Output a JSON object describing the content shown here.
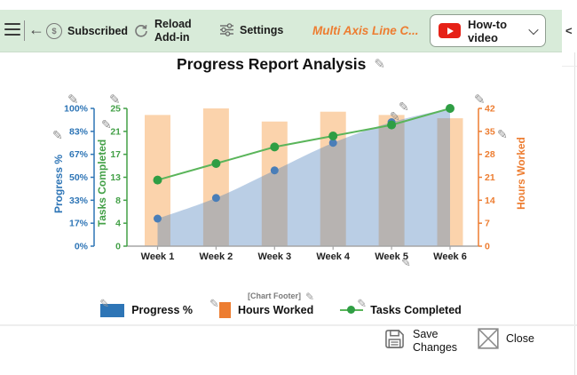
{
  "icons": {
    "pencil": "✎",
    "back_arrow": "←",
    "dollar": "$"
  },
  "toolbar": {
    "subscribed_label": "Subscribed",
    "reload_line1": "Reload",
    "reload_line2": "Add-in",
    "settings_label": "Settings",
    "app_title": "Multi Axis Line C...",
    "howto_label": "How-to video",
    "collapse_chevron": "<",
    "toolbar_bg": "#d8ebd9",
    "app_title_color": "#ed7d31",
    "youtube_red": "#e62117"
  },
  "chart": {
    "title": "Progress Report Analysis",
    "footer_label": "[Chart Footer]"
  },
  "chart_data": {
    "type": "combo (bar + area + line, multi-axis)",
    "title": "Progress Report Analysis",
    "categories": [
      "Week 1",
      "Week 2",
      "Week 3",
      "Week 4",
      "Week 5",
      "Week 6"
    ],
    "series": [
      {
        "name": "Progress %",
        "chart_type": "area",
        "axis": "progress",
        "values": [
          20,
          35,
          55,
          75,
          90,
          100
        ],
        "color": "#2e75b6",
        "fill": "rgba(74,126,187,0.38)",
        "dot_color": "#4a7eb8"
      },
      {
        "name": "Hours Worked",
        "chart_type": "bar",
        "axis": "hours",
        "values": [
          40,
          42,
          38,
          41,
          40,
          39
        ],
        "color": "#ed7d31",
        "fill": "rgba(246,161,79,0.47)"
      },
      {
        "name": "Tasks Completed",
        "chart_type": "line",
        "axis": "tasks",
        "values": [
          12,
          15,
          18,
          20,
          22,
          25
        ],
        "color": "#5ab55a",
        "dot_color": "#2f9e44"
      }
    ],
    "axes": {
      "progress": {
        "title": "Progress %",
        "side": "left",
        "min": 0,
        "max": 100,
        "ticks": [
          "0%",
          "17%",
          "33%",
          "50%",
          "67%",
          "83%",
          "100%"
        ],
        "color": "#2e75b6"
      },
      "tasks": {
        "title": "Tasks Completed",
        "side": "left",
        "min": 0,
        "max": 25,
        "ticks": [
          "0",
          "4",
          "8",
          "13",
          "17",
          "21",
          "25"
        ],
        "color": "#43a047"
      },
      "hours": {
        "title": "Hours Worked",
        "side": "right",
        "min": 0,
        "max": 42,
        "ticks": [
          "0",
          "7",
          "14",
          "21",
          "28",
          "35",
          "42"
        ],
        "color": "#ed7d31"
      }
    },
    "legend_position": "bottom",
    "grid": false
  },
  "footer": {
    "save_line1": "Save",
    "save_line2": "Changes",
    "close_label": "Close"
  }
}
